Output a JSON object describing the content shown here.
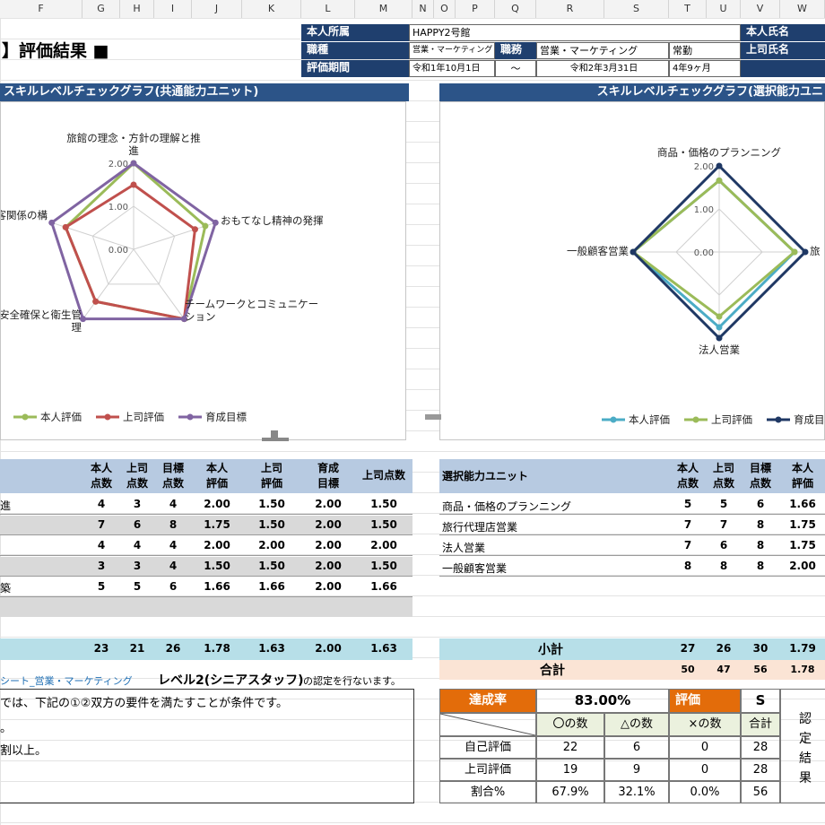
{
  "columns": [
    "F",
    "G",
    "H",
    "I",
    "J",
    "K",
    "L",
    "M",
    "N",
    "O",
    "P",
    "Q",
    "R",
    "S",
    "T",
    "U",
    "V",
    "W"
  ],
  "title": "】評価結果 ■",
  "header": {
    "dept_label": "本人所属",
    "dept_value": "HAPPY2号館",
    "job_label": "職種",
    "job_value": "営業・マーケティング",
    "duty_label": "職務",
    "duty_value": "営業・マーケティング",
    "employment": "常勤",
    "period_label": "評価期間",
    "period_start": "令和1年10月1日",
    "period_sep": "～",
    "period_end": "令和2年3月31日",
    "tenure": "4年9ヶ月",
    "name_label": "本人氏名",
    "boss_label": "上司氏名"
  },
  "chart_left_title": "スキルレベルチェックグラフ(共通能力ユニット)",
  "chart_right_title": "スキルレベルチェックグラフ(選択能力ユニ",
  "chart_data": [
    {
      "type": "radar",
      "axes": [
        "旅館の理念・方針の理解と推進",
        "おもてなし精神の発揮",
        "チームワークとコミュニケーション",
        "安全確保と衛生管理",
        "顧客関係の構"
      ],
      "axis_labels_display": [
        "旅館の理念・方針の理解と推\n進",
        "おもてなし精神の発揮",
        "チームワークとコミュニケー\nション",
        "安全確保と衛生管\n理",
        "客関係の構"
      ],
      "rlim": [
        0,
        2
      ],
      "ticks": [
        "2.00",
        "1.00",
        "0.00"
      ],
      "series": [
        {
          "name": "本人評価",
          "color": "#9bbb59",
          "values": [
            2.0,
            1.75,
            2.0,
            1.5,
            1.66
          ]
        },
        {
          "name": "上司評価",
          "color": "#c0504d",
          "values": [
            1.5,
            1.5,
            2.0,
            1.5,
            1.66
          ]
        },
        {
          "name": "育成目標",
          "color": "#8064a2",
          "values": [
            2.0,
            2.0,
            2.0,
            2.0,
            2.0
          ]
        }
      ]
    },
    {
      "type": "radar",
      "axes": [
        "商品・価格のプランニング",
        "旅行代理店営業",
        "法人営業",
        "一般顧客営業"
      ],
      "axis_labels_display": [
        "商品・価格のプランニング",
        "旅",
        "法人営業",
        "一般顧客営業"
      ],
      "rlim": [
        0,
        2
      ],
      "ticks": [
        "2.00",
        "1.00",
        "0.00"
      ],
      "series": [
        {
          "name": "本人評価",
          "color": "#4bacc6",
          "values": [
            1.66,
            1.75,
            1.75,
            2.0
          ]
        },
        {
          "name": "上司評価",
          "color": "#9bbb59",
          "values": [
            1.66,
            1.75,
            1.5,
            2.0
          ]
        },
        {
          "name": "育成目標",
          "color": "#1f3864",
          "values": [
            2.0,
            2.0,
            2.0,
            2.0
          ]
        }
      ]
    }
  ],
  "left_table": {
    "headers": [
      [
        "本人",
        "点数"
      ],
      [
        "上司",
        "点数"
      ],
      [
        "目標",
        "点数"
      ],
      [
        "本人",
        "評価"
      ],
      [
        "上司",
        "評価"
      ],
      [
        "育成",
        "目標"
      ],
      [
        "上司点数",
        ""
      ]
    ],
    "rows": [
      {
        "label": "進",
        "vals": [
          "4",
          "3",
          "4",
          "2.00",
          "1.50",
          "2.00",
          "1.50"
        ],
        "shade": false
      },
      {
        "label": "",
        "vals": [
          "7",
          "6",
          "8",
          "1.75",
          "1.50",
          "2.00",
          "1.50"
        ],
        "shade": true
      },
      {
        "label": "",
        "vals": [
          "4",
          "4",
          "4",
          "2.00",
          "2.00",
          "2.00",
          "2.00"
        ],
        "shade": false
      },
      {
        "label": "",
        "vals": [
          "3",
          "3",
          "4",
          "1.50",
          "1.50",
          "2.00",
          "1.50"
        ],
        "shade": true
      },
      {
        "label": "築",
        "vals": [
          "5",
          "5",
          "6",
          "1.66",
          "1.66",
          "2.00",
          "1.66"
        ],
        "shade": false
      }
    ],
    "total": [
      "23",
      "21",
      "26",
      "1.78",
      "1.63",
      "2.00",
      "1.63"
    ]
  },
  "right_table": {
    "header_label": "選択能力ユニット",
    "headers": [
      [
        "本人",
        "点数"
      ],
      [
        "上司",
        "点数"
      ],
      [
        "目標",
        "点数"
      ],
      [
        "本人",
        "評価"
      ]
    ],
    "rows": [
      {
        "label": "商品・価格のプランニング",
        "vals": [
          "5",
          "5",
          "6",
          "1.66"
        ]
      },
      {
        "label": "旅行代理店営業",
        "vals": [
          "7",
          "7",
          "8",
          "1.75"
        ]
      },
      {
        "label": "法人営業",
        "vals": [
          "7",
          "6",
          "8",
          "1.75"
        ]
      },
      {
        "label": "一般顧客営業",
        "vals": [
          "8",
          "8",
          "8",
          "2.00"
        ]
      }
    ],
    "subtotal_label": "小計",
    "subtotal": [
      "27",
      "26",
      "30",
      "1.79"
    ],
    "total_label": "合計",
    "total": [
      "50",
      "47",
      "56",
      "1.78"
    ]
  },
  "cert_line": {
    "sheet": "シート_営業・マーケティング",
    "level": "レベル2(シニアスタッフ)",
    "tail": "の認定を行ないます。"
  },
  "conditions": {
    "line1": "では、下記の①②双方の要件を満たすことが条件です。",
    "line2": "。",
    "line3": "割以上。"
  },
  "summary": {
    "rate_label": "達成率",
    "rate_value": "83.00%",
    "eval_label": "評価",
    "eval_value": "S",
    "col_o": "〇の数",
    "col_t": "△の数",
    "col_x": "×の数",
    "col_sum": "合計",
    "rows": [
      {
        "label": "自己評価",
        "o": "22",
        "t": "6",
        "x": "0",
        "sum": "28"
      },
      {
        "label": "上司評価",
        "o": "19",
        "t": "9",
        "x": "0",
        "sum": "28"
      },
      {
        "label": "割合%",
        "o": "67.9%",
        "t": "32.1%",
        "x": "0.0%",
        "sum": "56"
      }
    ],
    "cert_result": [
      "認",
      "定",
      "結",
      "果"
    ]
  }
}
